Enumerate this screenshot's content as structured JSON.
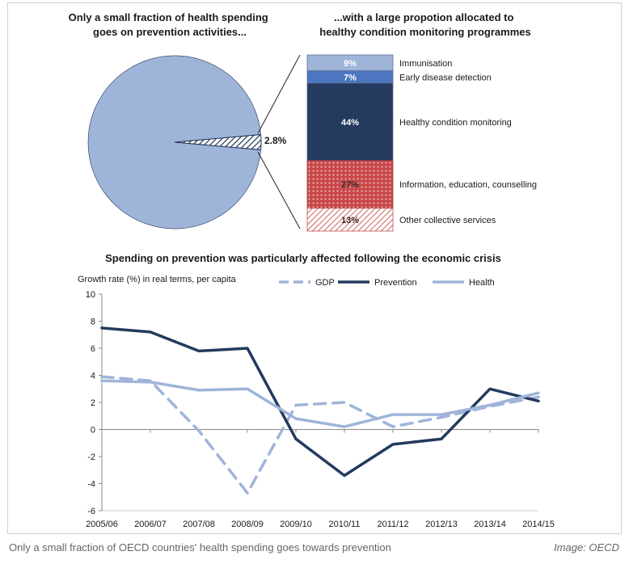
{
  "chart_data": [
    {
      "type": "pie",
      "title": "Only a small fraction of health spending goes on prevention activities...",
      "slice_label": "2.8%",
      "slices": [
        {
          "value": 97.2,
          "color": "#9fb4d9"
        },
        {
          "value": 2.8,
          "color": "#1f3355",
          "pattern": "hatch"
        }
      ]
    },
    {
      "type": "bar",
      "stacked": true,
      "title": "...with a large propotion allocated to healthy condition monitoring programmes",
      "segments": [
        {
          "name": "Immunisation",
          "value": 9,
          "label": "9%",
          "color": "#9fb4d9"
        },
        {
          "name": "Early disease detection",
          "value": 7,
          "label": "7%",
          "color": "#4d76c0"
        },
        {
          "name": "Healthy condition monitoring",
          "value": 44,
          "label": "44%",
          "color": "#243a5e"
        },
        {
          "name": "Information,  education,  counselling",
          "value": 27,
          "label": "27%",
          "color": "#c9484a",
          "pattern": "dots"
        },
        {
          "name": "Other collective services",
          "value": 13,
          "label": "13%",
          "color": "#d98a8a",
          "pattern": "hatch"
        }
      ]
    },
    {
      "type": "line",
      "title": "Spending on prevention was particularly affected following the economic crisis",
      "ylabel": "Growth rate (%) in real terms, per capita",
      "categories": [
        "2005/06",
        "2006/07",
        "2007/08",
        "2008/09",
        "2009/10",
        "2010/11",
        "2011/12",
        "2012/13",
        "2013/14",
        "2014/15"
      ],
      "ylim": [
        -6,
        10
      ],
      "yticks": [
        -6,
        -4,
        -2,
        0,
        2,
        4,
        6,
        8,
        10
      ],
      "legend_position": "top",
      "series": [
        {
          "name": "GDP",
          "color": "#9fb4d9",
          "dash": true,
          "values": [
            3.9,
            3.6,
            -0.1,
            -4.7,
            1.8,
            2.0,
            0.2,
            0.9,
            1.7,
            2.4
          ]
        },
        {
          "name": "Prevention",
          "color": "#243a5e",
          "dash": false,
          "values": [
            7.5,
            7.2,
            5.8,
            6.0,
            -0.7,
            -3.4,
            -1.1,
            -0.7,
            3.0,
            2.1
          ]
        },
        {
          "name": "Health",
          "color": "#9fb4d9",
          "dash": false,
          "values": [
            3.6,
            3.5,
            2.9,
            3.0,
            0.8,
            0.2,
            1.1,
            1.1,
            1.8,
            2.7
          ]
        }
      ]
    }
  ],
  "caption": "Only a small fraction of OECD countries' health spending goes towards prevention",
  "credit": "Image: OECD"
}
